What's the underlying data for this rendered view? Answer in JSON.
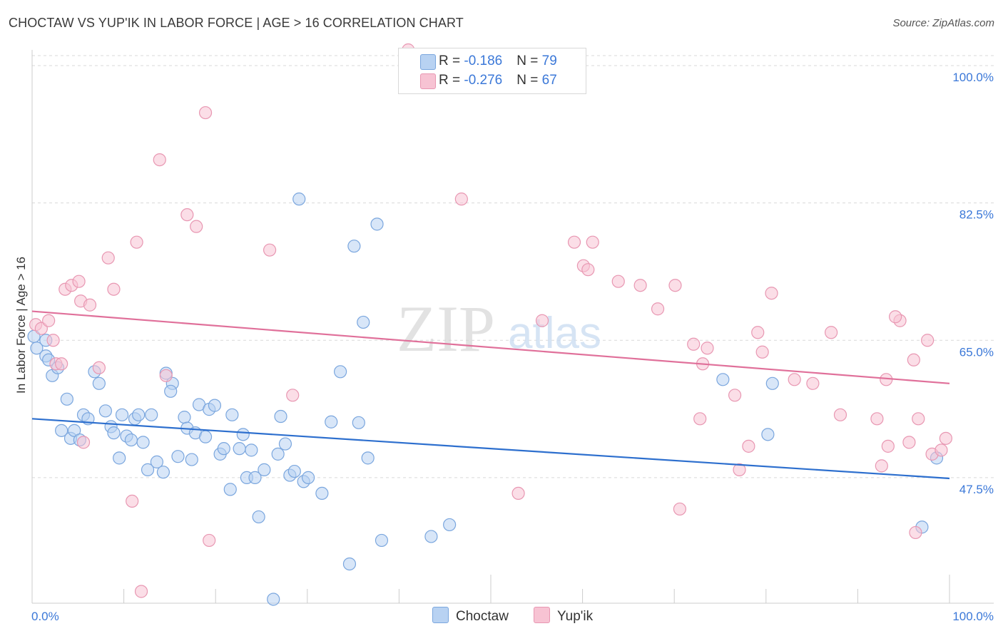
{
  "title": "CHOCTAW VS YUP'IK IN LABOR FORCE | AGE > 16 CORRELATION CHART",
  "source": "Source: ZipAtlas.com",
  "watermark": {
    "zip": "ZIP",
    "atlas": "atlas"
  },
  "legend": {
    "choctaw": {
      "r_label": "R = ",
      "r_value": "-0.186",
      "n_label": "N = ",
      "n_value": "79"
    },
    "yupik": {
      "r_label": "R = ",
      "r_value": "-0.276",
      "n_label": "N = ",
      "n_value": "67"
    }
  },
  "bottom_legend": {
    "choctaw": "Choctaw",
    "yupik": "Yup'ik"
  },
  "colors": {
    "choctaw_fill": "#b8d2f2",
    "choctaw_stroke": "#7aa6de",
    "choctaw_line": "#2d6fce",
    "yupik_fill": "#f7c3d3",
    "yupik_stroke": "#e897b2",
    "yupik_line": "#e0709a",
    "tick_label": "#3b78d8",
    "grid": "#d9d9d9"
  },
  "chart_data": {
    "type": "scatter",
    "title": "CHOCTAW VS YUP'IK IN LABOR FORCE | AGE > 16 CORRELATION CHART",
    "xlabel": "",
    "ylabel": "In Labor Force | Age > 16",
    "xlim": [
      0,
      100
    ],
    "ylim": [
      31.5,
      102
    ],
    "x_tick_labels": [
      "0.0%",
      "100.0%"
    ],
    "y_ticks": [
      47.5,
      65.0,
      82.5,
      100.0
    ],
    "y_tick_labels": [
      "47.5%",
      "65.0%",
      "82.5%",
      "100.0%"
    ],
    "series": [
      {
        "name": "Choctaw",
        "trend": {
          "x": [
            0,
            100
          ],
          "y": [
            55.0,
            47.4
          ]
        },
        "points": [
          [
            0.2,
            65.5
          ],
          [
            0.5,
            64.0
          ],
          [
            1.5,
            65.0
          ],
          [
            1.5,
            63.0
          ],
          [
            1.8,
            62.5
          ],
          [
            2.2,
            60.5
          ],
          [
            2.8,
            61.5
          ],
          [
            3.2,
            53.5
          ],
          [
            3.8,
            57.5
          ],
          [
            4.2,
            52.5
          ],
          [
            4.6,
            53.5
          ],
          [
            5.2,
            52.3
          ],
          [
            5.6,
            55.5
          ],
          [
            6.1,
            55.0
          ],
          [
            6.8,
            61.0
          ],
          [
            7.3,
            59.5
          ],
          [
            8.0,
            56.0
          ],
          [
            8.6,
            54.0
          ],
          [
            8.9,
            53.2
          ],
          [
            9.5,
            50.0
          ],
          [
            9.8,
            55.5
          ],
          [
            10.3,
            52.8
          ],
          [
            10.8,
            52.3
          ],
          [
            11.2,
            55.0
          ],
          [
            11.6,
            55.5
          ],
          [
            12.1,
            52.0
          ],
          [
            12.6,
            48.5
          ],
          [
            13.0,
            55.5
          ],
          [
            13.6,
            49.5
          ],
          [
            14.3,
            48.2
          ],
          [
            14.6,
            60.8
          ],
          [
            15.3,
            59.5
          ],
          [
            15.1,
            58.5
          ],
          [
            15.9,
            50.2
          ],
          [
            16.6,
            55.2
          ],
          [
            16.9,
            53.8
          ],
          [
            17.4,
            49.8
          ],
          [
            17.8,
            53.2
          ],
          [
            18.2,
            56.8
          ],
          [
            18.9,
            52.7
          ],
          [
            19.3,
            56.2
          ],
          [
            19.9,
            56.7
          ],
          [
            20.5,
            50.5
          ],
          [
            20.9,
            51.2
          ],
          [
            21.6,
            46.0
          ],
          [
            21.8,
            55.5
          ],
          [
            22.6,
            51.2
          ],
          [
            23.0,
            53.0
          ],
          [
            23.4,
            47.5
          ],
          [
            23.9,
            51.0
          ],
          [
            24.3,
            47.5
          ],
          [
            24.7,
            42.5
          ],
          [
            25.3,
            48.5
          ],
          [
            26.3,
            32.0
          ],
          [
            26.8,
            50.5
          ],
          [
            27.1,
            55.3
          ],
          [
            27.6,
            51.8
          ],
          [
            28.1,
            47.8
          ],
          [
            28.6,
            48.3
          ],
          [
            29.1,
            83.0
          ],
          [
            29.6,
            47.0
          ],
          [
            30.1,
            47.5
          ],
          [
            31.6,
            45.5
          ],
          [
            32.6,
            54.6
          ],
          [
            33.6,
            61.0
          ],
          [
            34.6,
            36.5
          ],
          [
            35.1,
            77.0
          ],
          [
            35.6,
            54.5
          ],
          [
            36.1,
            67.3
          ],
          [
            36.6,
            50.0
          ],
          [
            38.1,
            39.5
          ],
          [
            37.6,
            79.8
          ],
          [
            43.5,
            40.0
          ],
          [
            45.5,
            41.5
          ],
          [
            75.3,
            60.0
          ],
          [
            80.2,
            53.0
          ],
          [
            80.7,
            59.5
          ],
          [
            97.0,
            41.2
          ],
          [
            98.6,
            50.0
          ]
        ]
      },
      {
        "name": "Yup'ik",
        "trend": {
          "x": [
            0,
            100
          ],
          "y": [
            68.7,
            59.5
          ]
        },
        "points": [
          [
            0.4,
            67.0
          ],
          [
            1.0,
            66.5
          ],
          [
            1.8,
            67.5
          ],
          [
            2.3,
            65.0
          ],
          [
            2.6,
            62.0
          ],
          [
            3.2,
            62.0
          ],
          [
            3.6,
            71.5
          ],
          [
            4.3,
            72.0
          ],
          [
            5.1,
            72.5
          ],
          [
            5.3,
            70.0
          ],
          [
            6.3,
            69.5
          ],
          [
            5.6,
            52.0
          ],
          [
            7.3,
            61.5
          ],
          [
            8.3,
            75.5
          ],
          [
            8.9,
            71.5
          ],
          [
            10.9,
            44.5
          ],
          [
            11.4,
            77.5
          ],
          [
            11.9,
            33.0
          ],
          [
            13.9,
            88.0
          ],
          [
            14.6,
            60.5
          ],
          [
            16.9,
            81.0
          ],
          [
            17.9,
            79.5
          ],
          [
            18.9,
            94.0
          ],
          [
            19.3,
            39.5
          ],
          [
            25.9,
            76.5
          ],
          [
            28.4,
            58.0
          ],
          [
            41.0,
            102.0
          ],
          [
            46.8,
            83.0
          ],
          [
            53.0,
            45.5
          ],
          [
            55.6,
            67.5
          ],
          [
            59.1,
            77.5
          ],
          [
            60.1,
            74.5
          ],
          [
            60.6,
            74.0
          ],
          [
            61.1,
            77.5
          ],
          [
            63.9,
            72.5
          ],
          [
            66.3,
            72.0
          ],
          [
            68.2,
            69.0
          ],
          [
            70.1,
            72.0
          ],
          [
            70.6,
            43.5
          ],
          [
            72.1,
            64.5
          ],
          [
            72.8,
            55.0
          ],
          [
            73.1,
            62.0
          ],
          [
            73.6,
            64.0
          ],
          [
            76.6,
            58.0
          ],
          [
            77.1,
            48.5
          ],
          [
            78.1,
            51.5
          ],
          [
            79.1,
            66.0
          ],
          [
            79.6,
            63.5
          ],
          [
            80.6,
            71.0
          ],
          [
            83.1,
            60.0
          ],
          [
            85.1,
            59.5
          ],
          [
            87.1,
            66.0
          ],
          [
            88.1,
            55.5
          ],
          [
            92.1,
            55.0
          ],
          [
            92.6,
            49.0
          ],
          [
            93.1,
            60.0
          ],
          [
            93.3,
            51.5
          ],
          [
            94.6,
            67.5
          ],
          [
            94.1,
            68.0
          ],
          [
            95.6,
            52.0
          ],
          [
            96.1,
            62.5
          ],
          [
            96.6,
            55.0
          ],
          [
            96.3,
            40.5
          ],
          [
            97.6,
            65.0
          ],
          [
            98.1,
            50.5
          ],
          [
            99.1,
            51.0
          ],
          [
            99.6,
            52.5
          ]
        ]
      }
    ]
  }
}
